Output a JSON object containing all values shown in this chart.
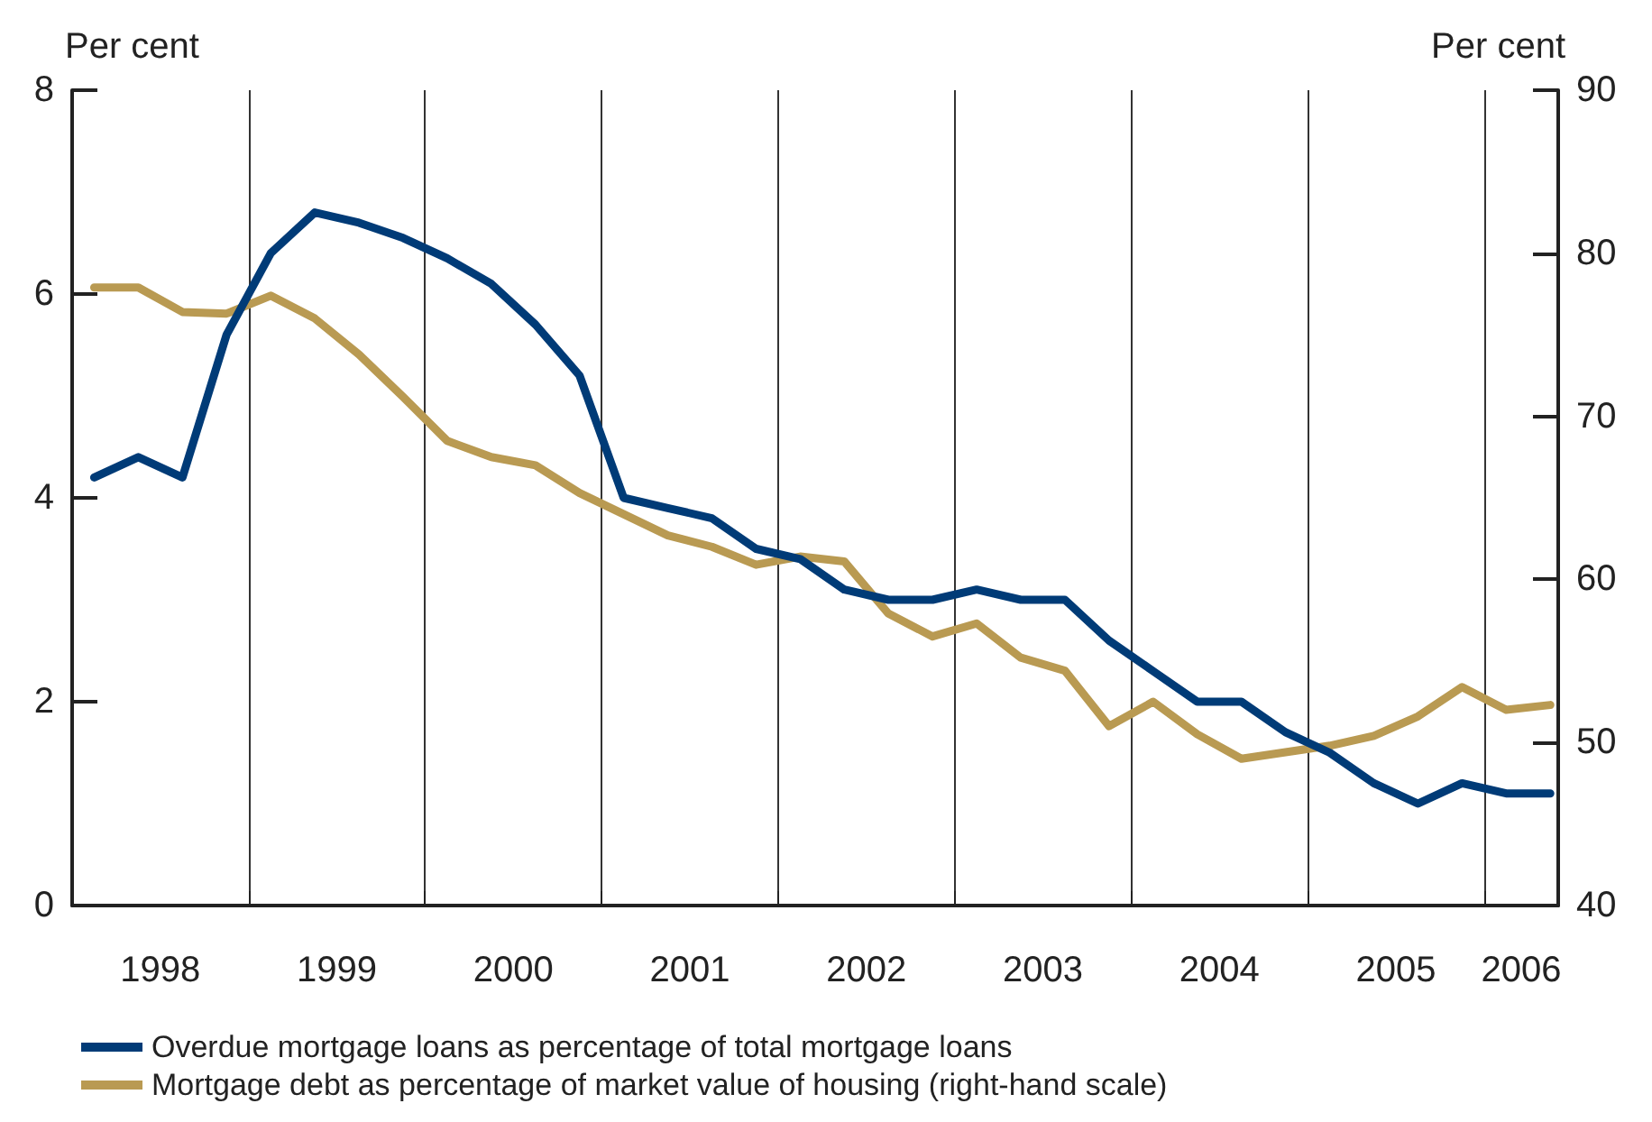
{
  "chart_data": {
    "type": "line",
    "ylabel": "Per cent",
    "y2label": "Per cent",
    "x": [
      1998.125,
      1998.375,
      1998.625,
      1998.875,
      1999.125,
      1999.375,
      1999.625,
      1999.875,
      2000.125,
      2000.375,
      2000.625,
      2000.875,
      2001.125,
      2001.375,
      2001.625,
      2001.875,
      2002.125,
      2002.375,
      2002.625,
      2002.875,
      2003.125,
      2003.375,
      2003.625,
      2003.875,
      2004.125,
      2004.375,
      2004.625,
      2004.875,
      2005.125,
      2005.375,
      2005.625,
      2005.875,
      2006.125,
      2006.375
    ],
    "series": [
      {
        "name": "Overdue mortgage loans as percentage of total mortgage loans",
        "color": "#003b77",
        "values": [
          4.2,
          4.4,
          4.2,
          5.6,
          6.4,
          6.8,
          6.7,
          6.55,
          6.35,
          6.1,
          5.7,
          5.2,
          4.0,
          3.9,
          3.8,
          3.5,
          3.4,
          3.1,
          3.0,
          3.0,
          3.1,
          3.0,
          3.0,
          2.6,
          2.3,
          2.0,
          2.0,
          1.7,
          1.5,
          1.2,
          1.0,
          1.2,
          1.1,
          1.1
        ]
      },
      {
        "name": "Mortgage debt as percentage of market value of housing (right-hand scale)",
        "color": "#b99a52",
        "axis": "y2",
        "values": [
          77.9,
          77.9,
          76.4,
          76.3,
          77.4,
          76.0,
          73.8,
          71.2,
          68.5,
          67.5,
          67.0,
          65.3,
          64.0,
          62.7,
          62.0,
          60.9,
          61.4,
          61.1,
          57.9,
          56.5,
          57.3,
          55.2,
          54.4,
          51.0,
          52.5,
          50.5,
          49.0,
          49.4,
          49.8,
          50.4,
          51.6,
          53.4,
          52.0,
          52.3
        ]
      }
    ],
    "xlim": [
      1998,
      2006.42
    ],
    "xticks": [
      {
        "value": 1998.5,
        "label": "1998"
      },
      {
        "value": 1999,
        "label": null
      },
      {
        "value": 1999.5,
        "label": "1999"
      },
      {
        "value": 2000,
        "label": null
      },
      {
        "value": 2000.5,
        "label": "2000"
      },
      {
        "value": 2001,
        "label": null
      },
      {
        "value": 2001.5,
        "label": "2001"
      },
      {
        "value": 2002,
        "label": null
      },
      {
        "value": 2002.5,
        "label": "2002"
      },
      {
        "value": 2003,
        "label": null
      },
      {
        "value": 2003.5,
        "label": "2003"
      },
      {
        "value": 2004,
        "label": null
      },
      {
        "value": 2004.5,
        "label": "2004"
      },
      {
        "value": 2005,
        "label": null
      },
      {
        "value": 2005.5,
        "label": "2005"
      },
      {
        "value": 2006,
        "label": null
      },
      {
        "value": 2006.21,
        "label": "2006"
      }
    ],
    "ylim": [
      0,
      8
    ],
    "yticks": [
      0,
      2,
      4,
      6,
      8
    ],
    "y2lim": [
      40,
      90
    ],
    "y2ticks": [
      40,
      50,
      60,
      70,
      80,
      90
    ],
    "grid": "x",
    "legend": "bottom",
    "marker": "none",
    "line_style": "solid"
  }
}
